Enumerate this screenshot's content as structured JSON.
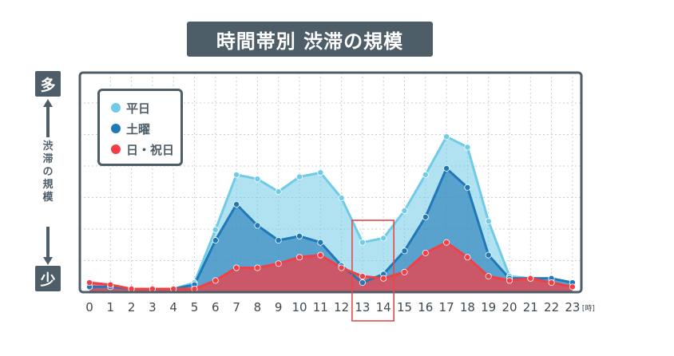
{
  "title": "時間帯別 渋滞の規模",
  "y_axis": {
    "top_label": "多",
    "bottom_label": "少",
    "label_chars": [
      "渋",
      "滞",
      "の",
      "規",
      "模"
    ]
  },
  "colors": {
    "weekday": "#6fcbe6",
    "saturday": "#1f78b8",
    "holiday": "#f23f45",
    "frame": "#4e5e68",
    "highlight": "#e24b4b"
  },
  "chart_data": {
    "type": "area",
    "title": "時間帯別 渋滞の規模",
    "xlabel": "",
    "ylabel": "渋滞の規模",
    "x_unit": "[時]",
    "x": [
      0,
      1,
      2,
      3,
      4,
      5,
      6,
      7,
      8,
      9,
      10,
      11,
      12,
      13,
      14,
      15,
      16,
      17,
      18,
      19,
      20,
      21,
      22,
      23
    ],
    "tick_labels": [
      "0",
      "1",
      "2",
      "3",
      "4",
      "5",
      "6",
      "7",
      "8",
      "9",
      "10",
      "11",
      "12",
      "13",
      "14",
      "15",
      "16",
      "17",
      "18",
      "19",
      "20",
      "21",
      "22",
      "23"
    ],
    "ylim": [
      0,
      100
    ],
    "grid": true,
    "legend": "top-left",
    "highlight_range": [
      13,
      14
    ],
    "series": [
      {
        "name": "平日",
        "color_key": "weekday",
        "values": [
          1,
          1,
          0,
          0,
          0,
          3,
          28,
          54,
          52,
          46,
          53,
          55,
          43,
          22,
          24,
          37,
          54,
          72,
          67,
          32,
          6,
          5,
          5,
          3
        ]
      },
      {
        "name": "土曜",
        "color_key": "saturday",
        "values": [
          1,
          1,
          0,
          0,
          0,
          2,
          23,
          40,
          30,
          23,
          25,
          22,
          11,
          3,
          7,
          18,
          34,
          57,
          48,
          16,
          5,
          5,
          5,
          3
        ]
      },
      {
        "name": "日・祝日",
        "color_key": "holiday",
        "values": [
          3,
          2,
          0,
          0,
          0,
          0,
          4,
          10,
          10,
          12,
          15,
          16,
          10,
          6,
          5,
          8,
          17,
          22,
          15,
          6,
          4,
          5,
          3,
          1
        ]
      }
    ]
  }
}
